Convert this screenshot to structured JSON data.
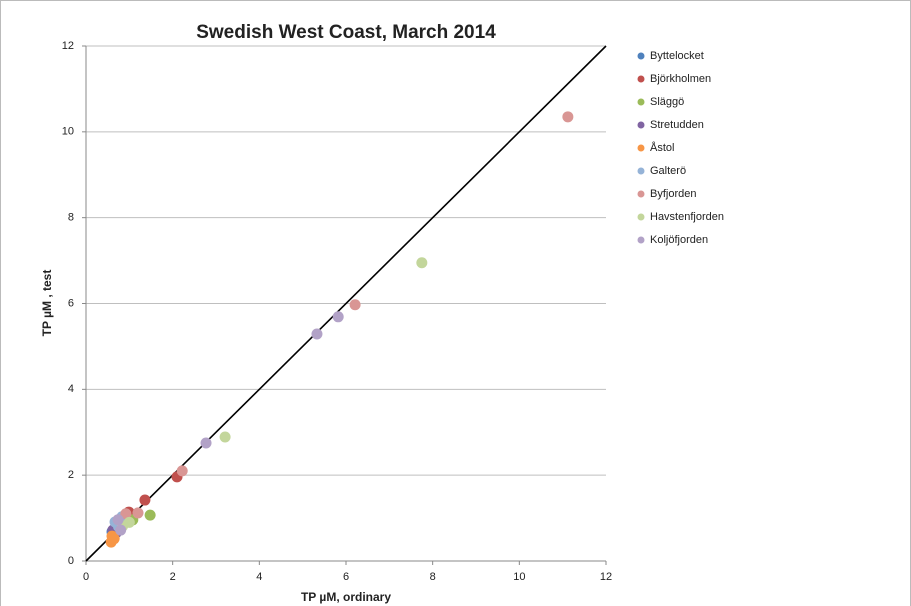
{
  "chart_data": {
    "type": "scatter",
    "title": "Swedish West Coast, March 2014",
    "x_label": "TP µM, ordinary",
    "y_label": "TP µM , test",
    "xlim": [
      0,
      12
    ],
    "ylim": [
      0,
      12
    ],
    "xticks": [
      0,
      2,
      4,
      6,
      8,
      10,
      12
    ],
    "yticks": [
      0,
      2,
      4,
      6,
      8,
      10,
      12
    ],
    "grid": "y",
    "legend": "right",
    "series": [
      {
        "name": "Byttelocket",
        "color": "#4f81bd",
        "x": [
          0.6,
          0.65
        ],
        "values": [
          0.68,
          0.62
        ]
      },
      {
        "name": "Björkholmen",
        "color": "#c0504d",
        "x": [
          1.36,
          0.99,
          2.1
        ],
        "values": [
          1.42,
          1.14,
          1.96
        ]
      },
      {
        "name": "Släggö",
        "color": "#9bbb59",
        "x": [
          1.48,
          1.08
        ],
        "values": [
          1.07,
          0.96
        ]
      },
      {
        "name": "Stretudden",
        "color": "#8064a2",
        "x": [
          0.62,
          0.7
        ],
        "values": [
          0.72,
          0.66
        ]
      },
      {
        "name": "Åstol",
        "color": "#f79646",
        "x": [
          0.58,
          0.6,
          0.65
        ],
        "values": [
          0.44,
          0.58,
          0.52
        ]
      },
      {
        "name": "Galterö",
        "color": "#95b3d7",
        "x": [
          0.67,
          0.83,
          0.75
        ],
        "values": [
          0.91,
          1.03,
          0.8
        ]
      },
      {
        "name": "Byfjorden",
        "color": "#d99694",
        "x": [
          11.12,
          6.21,
          2.22,
          0.92,
          1.2
        ],
        "values": [
          10.35,
          5.97,
          2.1,
          1.1,
          1.12
        ]
      },
      {
        "name": "Havstenfjorden",
        "color": "#c3d69b",
        "x": [
          7.75,
          3.21,
          1.0,
          0.85
        ],
        "values": [
          6.95,
          2.89,
          0.9,
          0.82
        ]
      },
      {
        "name": "Koljöfjorden",
        "color": "#b2a2c7",
        "x": [
          5.82,
          5.33,
          2.77,
          0.74,
          0.8
        ],
        "values": [
          5.69,
          5.29,
          2.75,
          0.96,
          0.72
        ]
      }
    ]
  }
}
